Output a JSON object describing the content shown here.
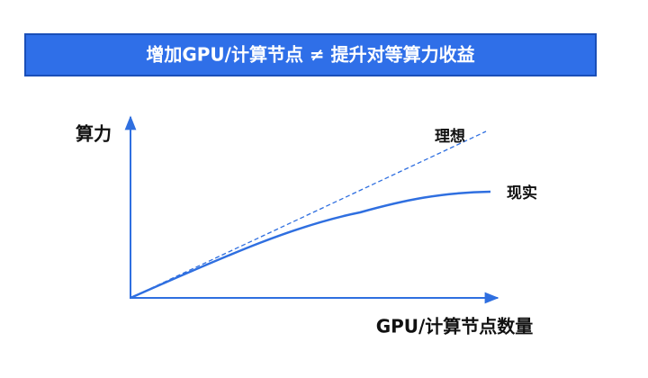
{
  "banner": {
    "title": "增加GPU/计算节点 ≠ 提升对等算力收益"
  },
  "axes": {
    "y_label": "算力",
    "x_label": "GPU/计算节点数量"
  },
  "curves": {
    "ideal_label": "理想",
    "actual_label": "现实"
  }
}
